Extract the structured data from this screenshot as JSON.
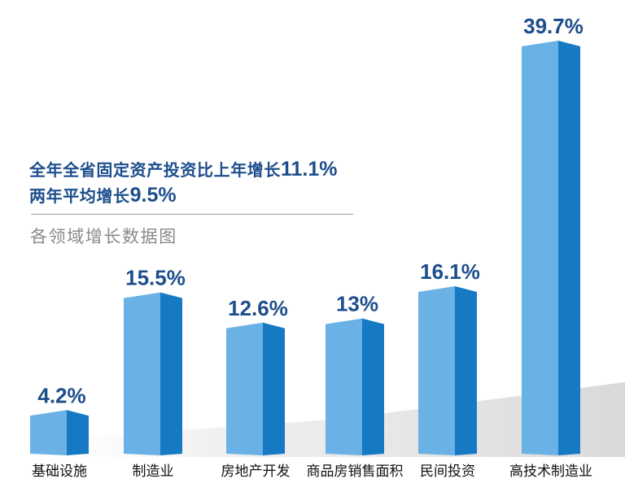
{
  "headline": {
    "line1_text": "全年全省固定资产投资比上年增长",
    "line1_value": "11.1%",
    "line2_text": "两年平均增长",
    "line2_value": "9.5%"
  },
  "colors": {
    "headline": "#1d4e8c",
    "bar_front": "#6ab2e5",
    "bar_side": "#1679c4",
    "value_label": "#1d4e8c",
    "floor": "#dcdcdc"
  },
  "chart_data": {
    "type": "bar",
    "title": "各领域增长数据图",
    "categories": [
      "基础设施",
      "制造业",
      "房地产开发",
      "商品房销售面积",
      "民间投资",
      "高技术制造业"
    ],
    "values": [
      4.2,
      15.5,
      12.6,
      13,
      16.1,
      39.7
    ],
    "value_labels": [
      "4.2%",
      "15.5%",
      "12.6%",
      "13%",
      "16.1%",
      "39.7%"
    ],
    "xlabel": "",
    "ylabel": "",
    "grid": false,
    "legend": "none"
  }
}
